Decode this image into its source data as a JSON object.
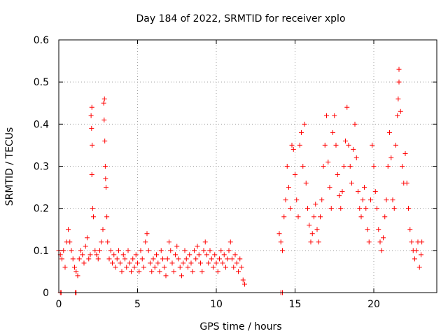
{
  "chart_data": {
    "type": "scatter",
    "title": "Day 184 of 2022, SRMTID for receiver xplo",
    "xlabel": "GPS time / hours",
    "ylabel": "SRMTID / TECUs",
    "xlim": [
      0,
      24
    ],
    "ylim": [
      0,
      0.6
    ],
    "xticks": [
      0,
      5,
      10,
      15,
      20
    ],
    "yticks": [
      0,
      0.1,
      0.2,
      0.3,
      0.4,
      0.5,
      0.6
    ],
    "xtick_labels": [
      "0",
      "5",
      "10",
      "15",
      "20"
    ],
    "ytick_labels": [
      "0",
      "0.1",
      "0.2",
      "0.3",
      "0.4",
      "0.5",
      "0.6"
    ],
    "grid": true,
    "marker": "+",
    "color": "#ff0000",
    "series": [
      {
        "name": "SRMTID",
        "points": [
          [
            0.1,
            0.0
          ],
          [
            0.15,
            0.0
          ],
          [
            1.05,
            0.0
          ],
          [
            1.1,
            0.0
          ],
          [
            14.1,
            0.0
          ],
          [
            14.2,
            0.0
          ],
          [
            0.0,
            0.1
          ],
          [
            0.1,
            0.09
          ],
          [
            0.2,
            0.08
          ],
          [
            0.3,
            0.1
          ],
          [
            0.4,
            0.06
          ],
          [
            0.5,
            0.12
          ],
          [
            0.6,
            0.15
          ],
          [
            0.7,
            0.12
          ],
          [
            0.8,
            0.1
          ],
          [
            0.9,
            0.08
          ],
          [
            1.0,
            0.06
          ],
          [
            1.1,
            0.05
          ],
          [
            1.2,
            0.04
          ],
          [
            1.3,
            0.08
          ],
          [
            1.4,
            0.1
          ],
          [
            1.5,
            0.09
          ],
          [
            1.6,
            0.07
          ],
          [
            1.7,
            0.11
          ],
          [
            1.8,
            0.13
          ],
          [
            1.9,
            0.08
          ],
          [
            2.0,
            0.09
          ],
          [
            2.05,
            0.42
          ],
          [
            2.1,
            0.44
          ],
          [
            2.08,
            0.39
          ],
          [
            2.12,
            0.35
          ],
          [
            2.1,
            0.28
          ],
          [
            2.15,
            0.2
          ],
          [
            2.2,
            0.18
          ],
          [
            2.3,
            0.1
          ],
          [
            2.4,
            0.09
          ],
          [
            2.5,
            0.08
          ],
          [
            2.6,
            0.1
          ],
          [
            2.7,
            0.12
          ],
          [
            2.8,
            0.15
          ],
          [
            2.85,
            0.45
          ],
          [
            2.9,
            0.46
          ],
          [
            2.88,
            0.41
          ],
          [
            2.92,
            0.36
          ],
          [
            2.95,
            0.3
          ],
          [
            2.97,
            0.27
          ],
          [
            3.0,
            0.25
          ],
          [
            3.05,
            0.18
          ],
          [
            3.1,
            0.12
          ],
          [
            3.2,
            0.08
          ],
          [
            3.3,
            0.1
          ],
          [
            3.4,
            0.07
          ],
          [
            3.5,
            0.09
          ],
          [
            3.6,
            0.06
          ],
          [
            3.7,
            0.08
          ],
          [
            3.8,
            0.1
          ],
          [
            3.9,
            0.07
          ],
          [
            4.0,
            0.05
          ],
          [
            4.1,
            0.09
          ],
          [
            4.2,
            0.08
          ],
          [
            4.3,
            0.06
          ],
          [
            4.4,
            0.1
          ],
          [
            4.5,
            0.07
          ],
          [
            4.6,
            0.05
          ],
          [
            4.7,
            0.08
          ],
          [
            4.8,
            0.06
          ],
          [
            4.9,
            0.09
          ],
          [
            5.0,
            0.07
          ],
          [
            5.1,
            0.05
          ],
          [
            5.2,
            0.1
          ],
          [
            5.3,
            0.08
          ],
          [
            5.4,
            0.06
          ],
          [
            5.5,
            0.12
          ],
          [
            5.6,
            0.14
          ],
          [
            5.7,
            0.1
          ],
          [
            5.8,
            0.07
          ],
          [
            5.9,
            0.05
          ],
          [
            6.0,
            0.08
          ],
          [
            6.1,
            0.06
          ],
          [
            6.2,
            0.09
          ],
          [
            6.3,
            0.07
          ],
          [
            6.4,
            0.05
          ],
          [
            6.5,
            0.1
          ],
          [
            6.6,
            0.08
          ],
          [
            6.7,
            0.06
          ],
          [
            6.8,
            0.04
          ],
          [
            6.9,
            0.08
          ],
          [
            7.0,
            0.12
          ],
          [
            7.1,
            0.1
          ],
          [
            7.2,
            0.07
          ],
          [
            7.3,
            0.05
          ],
          [
            7.4,
            0.09
          ],
          [
            7.5,
            0.11
          ],
          [
            7.6,
            0.08
          ],
          [
            7.7,
            0.06
          ],
          [
            7.8,
            0.04
          ],
          [
            7.9,
            0.07
          ],
          [
            8.0,
            0.1
          ],
          [
            8.1,
            0.08
          ],
          [
            8.2,
            0.06
          ],
          [
            8.3,
            0.09
          ],
          [
            8.4,
            0.07
          ],
          [
            8.5,
            0.05
          ],
          [
            8.6,
            0.1
          ],
          [
            8.7,
            0.08
          ],
          [
            8.8,
            0.11
          ],
          [
            8.9,
            0.09
          ],
          [
            9.0,
            0.07
          ],
          [
            9.1,
            0.05
          ],
          [
            9.2,
            0.1
          ],
          [
            9.3,
            0.12
          ],
          [
            9.4,
            0.09
          ],
          [
            9.5,
            0.07
          ],
          [
            9.6,
            0.1
          ],
          [
            9.7,
            0.08
          ],
          [
            9.8,
            0.06
          ],
          [
            9.9,
            0.09
          ],
          [
            10.0,
            0.07
          ],
          [
            10.1,
            0.05
          ],
          [
            10.2,
            0.08
          ],
          [
            10.3,
            0.1
          ],
          [
            10.4,
            0.07
          ],
          [
            10.5,
            0.09
          ],
          [
            10.6,
            0.06
          ],
          [
            10.7,
            0.08
          ],
          [
            10.8,
            0.1
          ],
          [
            10.9,
            0.12
          ],
          [
            11.0,
            0.08
          ],
          [
            11.1,
            0.06
          ],
          [
            11.2,
            0.09
          ],
          [
            11.3,
            0.07
          ],
          [
            11.4,
            0.05
          ],
          [
            11.5,
            0.08
          ],
          [
            11.6,
            0.06
          ],
          [
            11.7,
            0.03
          ],
          [
            11.8,
            0.02
          ],
          [
            14.0,
            0.14
          ],
          [
            14.1,
            0.12
          ],
          [
            14.2,
            0.1
          ],
          [
            14.3,
            0.18
          ],
          [
            14.4,
            0.22
          ],
          [
            14.5,
            0.3
          ],
          [
            14.6,
            0.25
          ],
          [
            14.7,
            0.2
          ],
          [
            14.8,
            0.35
          ],
          [
            14.9,
            0.34
          ],
          [
            15.0,
            0.28
          ],
          [
            15.1,
            0.22
          ],
          [
            15.2,
            0.18
          ],
          [
            15.3,
            0.35
          ],
          [
            15.4,
            0.38
          ],
          [
            15.5,
            0.3
          ],
          [
            15.6,
            0.4
          ],
          [
            15.7,
            0.26
          ],
          [
            15.8,
            0.2
          ],
          [
            15.9,
            0.16
          ],
          [
            16.0,
            0.12
          ],
          [
            16.1,
            0.14
          ],
          [
            16.2,
            0.18
          ],
          [
            16.3,
            0.21
          ],
          [
            16.4,
            0.15
          ],
          [
            16.5,
            0.12
          ],
          [
            16.6,
            0.18
          ],
          [
            16.7,
            0.22
          ],
          [
            16.8,
            0.3
          ],
          [
            16.9,
            0.35
          ],
          [
            17.0,
            0.42
          ],
          [
            17.1,
            0.31
          ],
          [
            17.2,
            0.25
          ],
          [
            17.3,
            0.2
          ],
          [
            17.4,
            0.38
          ],
          [
            17.5,
            0.42
          ],
          [
            17.6,
            0.35
          ],
          [
            17.7,
            0.28
          ],
          [
            17.8,
            0.23
          ],
          [
            17.9,
            0.2
          ],
          [
            18.0,
            0.24
          ],
          [
            18.1,
            0.3
          ],
          [
            18.2,
            0.36
          ],
          [
            18.3,
            0.44
          ],
          [
            18.4,
            0.35
          ],
          [
            18.5,
            0.3
          ],
          [
            18.6,
            0.26
          ],
          [
            18.7,
            0.34
          ],
          [
            18.8,
            0.4
          ],
          [
            18.9,
            0.32
          ],
          [
            19.0,
            0.24
          ],
          [
            19.1,
            0.2
          ],
          [
            19.2,
            0.18
          ],
          [
            19.3,
            0.22
          ],
          [
            19.4,
            0.25
          ],
          [
            19.5,
            0.2
          ],
          [
            19.6,
            0.15
          ],
          [
            19.7,
            0.12
          ],
          [
            19.8,
            0.22
          ],
          [
            19.9,
            0.35
          ],
          [
            20.0,
            0.3
          ],
          [
            20.1,
            0.24
          ],
          [
            20.2,
            0.2
          ],
          [
            20.3,
            0.15
          ],
          [
            20.4,
            0.12
          ],
          [
            20.5,
            0.1
          ],
          [
            20.6,
            0.13
          ],
          [
            20.7,
            0.18
          ],
          [
            20.8,
            0.22
          ],
          [
            20.9,
            0.3
          ],
          [
            21.0,
            0.38
          ],
          [
            21.1,
            0.32
          ],
          [
            21.2,
            0.22
          ],
          [
            21.3,
            0.2
          ],
          [
            21.4,
            0.35
          ],
          [
            21.5,
            0.42
          ],
          [
            21.55,
            0.46
          ],
          [
            21.6,
            0.5
          ],
          [
            21.6,
            0.53
          ],
          [
            21.7,
            0.43
          ],
          [
            21.8,
            0.3
          ],
          [
            21.9,
            0.26
          ],
          [
            22.0,
            0.33
          ],
          [
            22.1,
            0.26
          ],
          [
            22.2,
            0.2
          ],
          [
            22.3,
            0.15
          ],
          [
            22.4,
            0.12
          ],
          [
            22.5,
            0.1
          ],
          [
            22.6,
            0.08
          ],
          [
            22.7,
            0.1
          ],
          [
            22.8,
            0.12
          ],
          [
            22.9,
            0.06
          ],
          [
            23.0,
            0.09
          ],
          [
            23.05,
            0.12
          ]
        ]
      }
    ]
  }
}
